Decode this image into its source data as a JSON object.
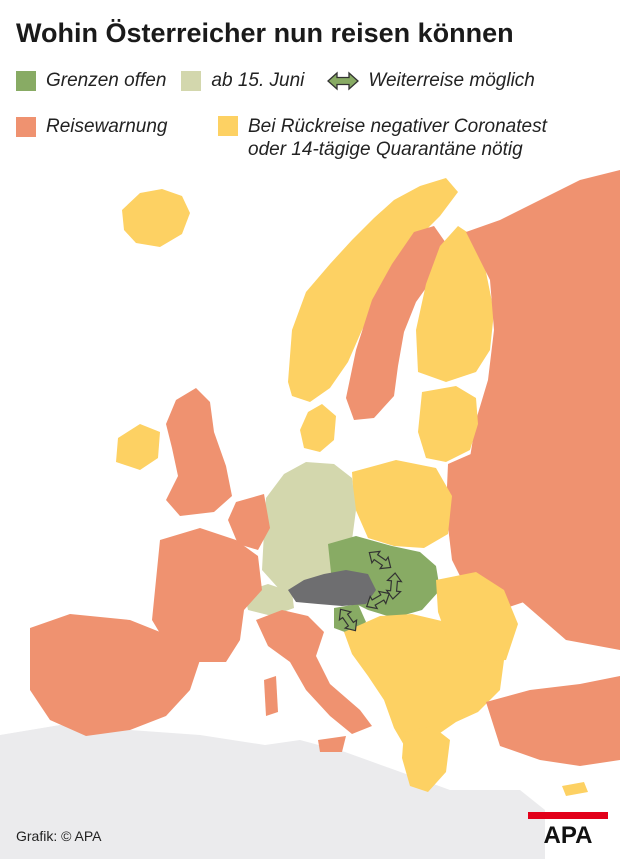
{
  "title": "Wohin Österreicher nun reisen können",
  "legend": {
    "open": {
      "label": "Grenzen offen",
      "color": "#88ab64"
    },
    "june15": {
      "label": "ab 15. Juni",
      "color": "#d3d7ad"
    },
    "transit": {
      "label": "Weiterreise möglich",
      "icon": "double-arrow-icon"
    },
    "warning": {
      "label": "Reisewarnung",
      "color": "#ef9270"
    },
    "test": {
      "label_line1": "Bei Rückreise negativer Coronatest",
      "label_line2": "oder 14-tägige Quarantäne nötig",
      "color": "#fdd163"
    }
  },
  "colors": {
    "austria": "#6e6e70",
    "outside": "#ebebed",
    "sea": "#ffffff"
  },
  "credit": "Grafik: © APA",
  "logo_text": "APA"
}
